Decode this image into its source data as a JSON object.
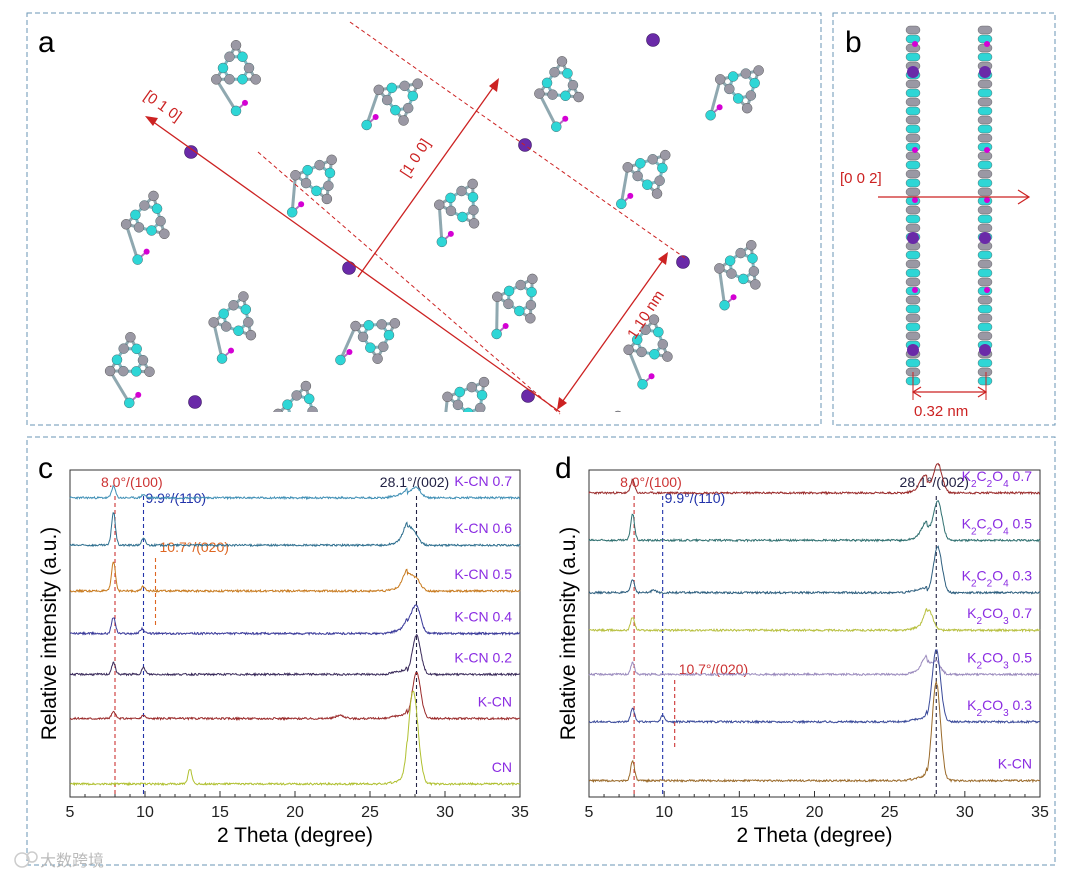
{
  "panels": {
    "a": {
      "label": "a",
      "dir_010": "[0 1 0]",
      "dir_100": "[1 0 0]",
      "dist": "1.10 nm",
      "colors": {
        "nitrogen": "#2ed6d6",
        "carbon": "#9a98a4",
        "hydrogen": "#d400d4",
        "potassium": "#6a2aa8",
        "annotation": "#cc2222"
      }
    },
    "b": {
      "label": "b",
      "dir_002": "[0 0 2]",
      "dist": "0.32 nm"
    }
  },
  "watermark": "大数跨境",
  "chart_data": [
    {
      "panel": "c",
      "type": "line",
      "xlabel": "2 Theta (degree)",
      "ylabel": "Relative intensity (a.u.)",
      "xlim": [
        5,
        35
      ],
      "xticks": [
        5,
        10,
        15,
        20,
        25,
        30,
        35
      ],
      "legend": "labels beside curves, right",
      "reference_lines": [
        {
          "x": 8.0,
          "label": "8.0°/(100)",
          "color": "#cc3333"
        },
        {
          "x": 9.9,
          "label": "9.9°/(110)",
          "color": "#2233aa"
        },
        {
          "x": 10.7,
          "label": "10.7°/(020)",
          "color": "#dd6622"
        },
        {
          "x": 28.1,
          "label": "28.1°/(002)",
          "color": "#222244"
        }
      ],
      "series": [
        {
          "name": "K-CN 0.7",
          "color": "#3f8fb5",
          "baseline": 0.915,
          "peaks": [
            [
              7.9,
              0.035
            ],
            [
              9.9,
              0.01
            ],
            [
              27.6,
              0.012
            ],
            [
              28.1,
              0.03
            ]
          ]
        },
        {
          "name": "K-CN 0.6",
          "color": "#2e6f8f",
          "baseline": 0.77,
          "peaks": [
            [
              7.9,
              0.1
            ],
            [
              9.9,
              0.02
            ],
            [
              27.5,
              0.05
            ],
            [
              28.0,
              0.03
            ]
          ]
        },
        {
          "name": "K-CN 0.5",
          "color": "#c87a1e",
          "baseline": 0.63,
          "peaks": [
            [
              7.9,
              0.09
            ],
            [
              9.9,
              0.015
            ],
            [
              27.5,
              0.05
            ],
            [
              28.1,
              0.035
            ]
          ]
        },
        {
          "name": "K-CN 0.4",
          "color": "#3a3a9a",
          "baseline": 0.5,
          "peaks": [
            [
              7.9,
              0.05
            ],
            [
              9.8,
              0.015
            ],
            [
              27.6,
              0.03
            ],
            [
              28.1,
              0.08
            ]
          ]
        },
        {
          "name": "K-CN 0.2",
          "color": "#3a2a5a",
          "baseline": 0.375,
          "peaks": [
            [
              7.9,
              0.035
            ],
            [
              9.9,
              0.02
            ],
            [
              28.1,
              0.12
            ]
          ]
        },
        {
          "name": "K-CN",
          "color": "#9a2a2a",
          "baseline": 0.24,
          "peaks": [
            [
              7.9,
              0.02
            ],
            [
              9.9,
              0.01
            ],
            [
              23,
              0.01
            ],
            [
              28.1,
              0.14
            ]
          ]
        },
        {
          "name": "CN",
          "color": "#b0c030",
          "baseline": 0.04,
          "peaks": [
            [
              13.0,
              0.045
            ],
            [
              27.8,
              0.22
            ],
            [
              28.1,
              0.1
            ]
          ]
        }
      ]
    },
    {
      "panel": "d",
      "type": "line",
      "xlabel": "2 Theta (degree)",
      "ylabel": "Relative intensity (a.u.)",
      "xlim": [
        5,
        35
      ],
      "xticks": [
        5,
        10,
        15,
        20,
        25,
        30,
        35
      ],
      "legend": "labels beside curves, right",
      "reference_lines": [
        {
          "x": 8.0,
          "label": "8.0°/(100)",
          "color": "#cc3333"
        },
        {
          "x": 9.9,
          "label": "9.9°/(110)",
          "color": "#2233aa"
        },
        {
          "x": 10.7,
          "label": "10.7°/(020)",
          "color": "#cc3333"
        },
        {
          "x": 28.1,
          "label": "28.1°/(002)",
          "color": "#222244"
        }
      ],
      "series": [
        {
          "name": "K2C2O4 0.7",
          "color": "#9a2a2a",
          "baseline": 0.93,
          "peaks": [
            [
              7.9,
              0.04
            ],
            [
              27.3,
              0.04
            ],
            [
              28.2,
              0.09
            ]
          ]
        },
        {
          "name": "K2C2O4 0.5",
          "color": "#2e6f6f",
          "baseline": 0.785,
          "peaks": [
            [
              7.9,
              0.08
            ],
            [
              27.4,
              0.04
            ],
            [
              28.2,
              0.12
            ]
          ]
        },
        {
          "name": "K2C2O4 0.3",
          "color": "#2e5f7f",
          "baseline": 0.625,
          "peaks": [
            [
              7.9,
              0.04
            ],
            [
              9.3,
              0.01
            ],
            [
              28.2,
              0.14
            ]
          ]
        },
        {
          "name": "K2CO3 0.7",
          "color": "#b8c040",
          "baseline": 0.51,
          "peaks": [
            [
              7.9,
              0.04
            ],
            [
              27.6,
              0.06
            ]
          ]
        },
        {
          "name": "K2CO3 0.5",
          "color": "#9a8abd",
          "baseline": 0.375,
          "peaks": [
            [
              7.9,
              0.035
            ],
            [
              27.4,
              0.04
            ],
            [
              28.1,
              0.04
            ]
          ]
        },
        {
          "name": "K2CO3 0.3",
          "color": "#3a4a9a",
          "baseline": 0.23,
          "peaks": [
            [
              7.9,
              0.04
            ],
            [
              9.9,
              0.02
            ],
            [
              28.1,
              0.22
            ]
          ]
        },
        {
          "name": "K-CN",
          "color": "#9a6a2a",
          "baseline": 0.05,
          "peaks": [
            [
              7.9,
              0.06
            ],
            [
              28.1,
              0.3
            ]
          ]
        }
      ],
      "series_label_parts": [
        [
          [
            "K",
            ""
          ],
          [
            "2",
            "sub"
          ],
          [
            "C",
            ""
          ],
          [
            "2",
            "sub"
          ],
          [
            "O",
            ""
          ],
          [
            "4",
            "sub"
          ],
          [
            " 0.7",
            ""
          ]
        ],
        [
          [
            "K",
            ""
          ],
          [
            "2",
            "sub"
          ],
          [
            "C",
            ""
          ],
          [
            "2",
            "sub"
          ],
          [
            "O",
            ""
          ],
          [
            "4",
            "sub"
          ],
          [
            " 0.5",
            ""
          ]
        ],
        [
          [
            "K",
            ""
          ],
          [
            "2",
            "sub"
          ],
          [
            "C",
            ""
          ],
          [
            "2",
            "sub"
          ],
          [
            "O",
            ""
          ],
          [
            "4",
            "sub"
          ],
          [
            " 0.3",
            ""
          ]
        ],
        [
          [
            "K",
            ""
          ],
          [
            "2",
            "sub"
          ],
          [
            "CO",
            ""
          ],
          [
            "3",
            "sub"
          ],
          [
            " 0.7",
            ""
          ]
        ],
        [
          [
            "K",
            ""
          ],
          [
            "2",
            "sub"
          ],
          [
            "CO",
            ""
          ],
          [
            "3",
            "sub"
          ],
          [
            " 0.5",
            ""
          ]
        ],
        [
          [
            "K",
            ""
          ],
          [
            "2",
            "sub"
          ],
          [
            "CO",
            ""
          ],
          [
            "3",
            "sub"
          ],
          [
            " 0.3",
            ""
          ]
        ],
        [
          [
            "K-CN",
            ""
          ]
        ]
      ]
    }
  ]
}
